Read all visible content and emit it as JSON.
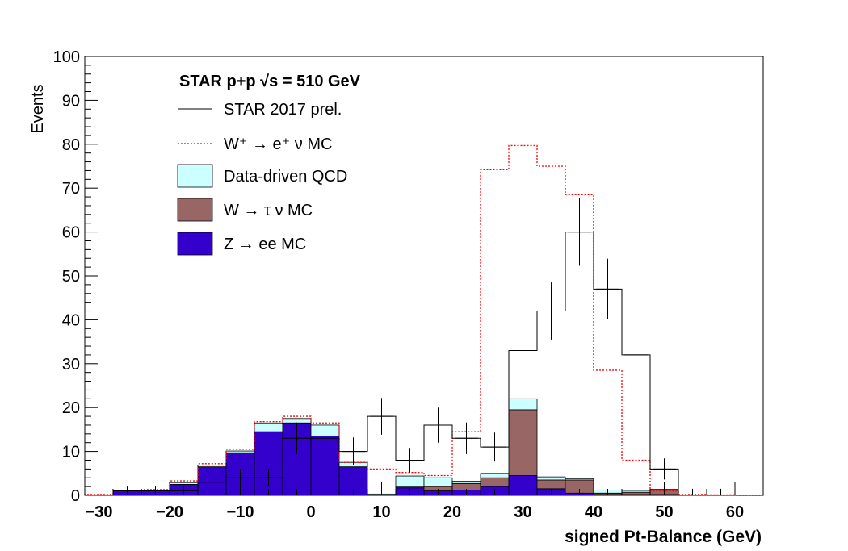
{
  "chart_data": {
    "type": "bar",
    "subtype": "stacked-histogram",
    "title": "STAR p+p  √s = 510 GeV",
    "xlabel": "signed Pt-Balance (GeV)",
    "ylabel": "Events",
    "xlim": [
      -32,
      64
    ],
    "ylim": [
      0,
      100
    ],
    "xticks": [
      -30,
      -20,
      -10,
      0,
      10,
      20,
      30,
      40,
      50,
      60
    ],
    "yticks": [
      0,
      10,
      20,
      30,
      40,
      50,
      60,
      70,
      80,
      90,
      100
    ],
    "bin_edges": [
      -32,
      -28,
      -24,
      -20,
      -16,
      -12,
      -8,
      -4,
      0,
      4,
      8,
      12,
      16,
      20,
      24,
      28,
      32,
      36,
      40,
      44,
      48,
      52,
      56,
      60,
      64
    ],
    "legend_position": "top-left",
    "series": [
      {
        "name": "STAR 2017 prel.",
        "style": "data-points",
        "color": "#000000",
        "values": [
          0,
          1,
          1,
          1,
          3,
          4,
          4,
          13,
          13,
          10,
          18,
          8,
          16,
          13,
          11,
          33,
          42,
          60,
          47,
          32,
          6,
          0,
          0,
          0
        ],
        "errors": [
          0,
          1,
          1,
          1,
          1.7,
          2,
          2,
          3.6,
          3.6,
          3.2,
          4.2,
          2.8,
          4,
          3.6,
          3.3,
          5.7,
          6.5,
          7.7,
          6.9,
          5.7,
          2.4,
          0,
          0,
          0
        ]
      },
      {
        "name": "W⁺ → e⁺ ν MC",
        "style": "dashed-line",
        "color": "#ff0000",
        "values": [
          0.2,
          1.1,
          1.3,
          3.3,
          7.2,
          10.5,
          16.8,
          18.0,
          16.5,
          7.5,
          6.0,
          5.2,
          4.5,
          14.5,
          74.2,
          79.7,
          75.0,
          68.5,
          28.5,
          8.0,
          1.0,
          0.2,
          0.1,
          0
        ]
      },
      {
        "name": "Data-driven QCD",
        "style": "stacked-fill",
        "color": "#ccffff",
        "values": [
          0,
          0,
          0.2,
          0.4,
          0.4,
          0.4,
          2.0,
          1.0,
          2.5,
          1.0,
          0.3,
          2.5,
          2.0,
          0.5,
          1.0,
          2.5,
          0.7,
          0.3,
          0.7,
          0.4,
          0.2,
          0,
          0,
          0
        ]
      },
      {
        "name": "W → τ ν MC",
        "style": "stacked-fill",
        "color": "#996666",
        "values": [
          0,
          0,
          0,
          0,
          0,
          0,
          0,
          0,
          0,
          0,
          0,
          0.2,
          1.0,
          1.5,
          2.0,
          15.0,
          2.0,
          3.0,
          0.3,
          0.5,
          1.0,
          0,
          0,
          0
        ]
      },
      {
        "name": "Z → ee MC",
        "style": "stacked-fill",
        "color": "#3300cc",
        "values": [
          0,
          1.0,
          1.0,
          2.5,
          6.5,
          9.7,
          14.5,
          16.5,
          13.5,
          6.5,
          0,
          1.7,
          1.0,
          1.2,
          2.0,
          4.5,
          1.5,
          0.5,
          0.2,
          0.2,
          0.2,
          0,
          0,
          0
        ]
      }
    ]
  }
}
